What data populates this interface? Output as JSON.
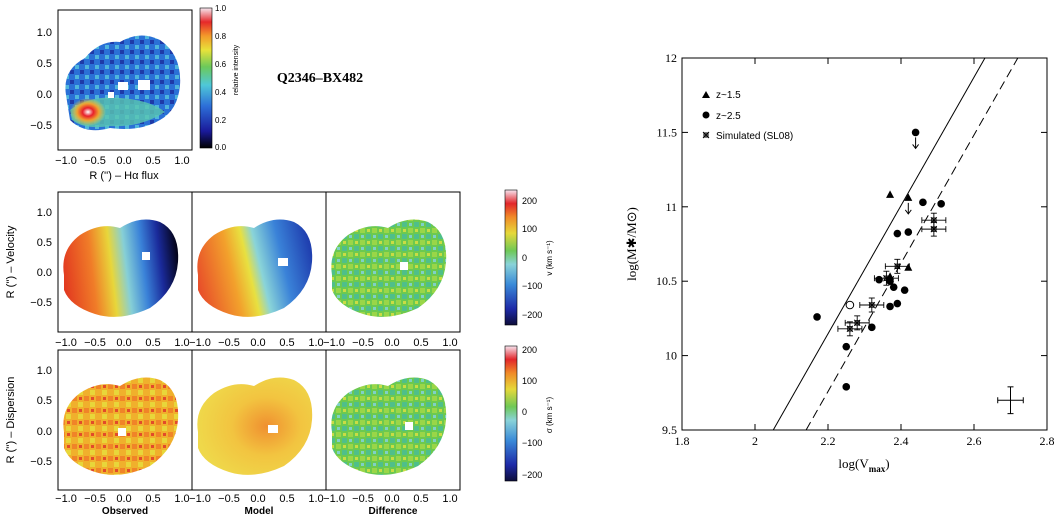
{
  "chart_data": [
    {
      "type": "heatmap",
      "panel": "halpha-flux-map",
      "object_label": "Q2346–BX482",
      "xlabel": "R ('') – Hα flux",
      "ylabel": "",
      "x_ticks": [
        "−1.0",
        "−0.5",
        "0.0",
        "0.5",
        "1.0"
      ],
      "y_ticks": [
        "1.0",
        "0.5",
        "0.0",
        "−0.5"
      ],
      "xlim": [
        -1.15,
        1.15
      ],
      "ylim": [
        -0.82,
        1.35
      ],
      "colorbar": {
        "label": "relative intensity",
        "ticks": [
          "1.0",
          "0.8",
          "0.6",
          "0.4",
          "0.2",
          "0.0"
        ],
        "range": [
          0.0,
          1.0
        ]
      }
    },
    {
      "type": "heatmap",
      "panel": "velocity-maps",
      "ylabel": "R ('') – Velocity",
      "columns": [
        "Observed",
        "Model",
        "Difference"
      ],
      "x_ticks": [
        "−1.0",
        "−0.5",
        "0.0",
        "0.5",
        "1.0"
      ],
      "y_ticks": [
        "1.0",
        "0.5",
        "0.0",
        "−0.5"
      ],
      "xlim": [
        -1.15,
        1.15
      ],
      "ylim": [
        -0.9,
        1.25
      ],
      "colorbar": {
        "label": "v (km s⁻¹)",
        "ticks": [
          "200",
          "100",
          "0",
          "−100",
          "−200"
        ],
        "range": [
          -240,
          240
        ]
      }
    },
    {
      "type": "heatmap",
      "panel": "dispersion-maps",
      "ylabel": "R ('') – Dispersion",
      "columns": [
        "Observed",
        "Model",
        "Difference"
      ],
      "x_ticks": [
        "−1.0",
        "−0.5",
        "0.0",
        "0.5",
        "1.0"
      ],
      "y_ticks": [
        "1.0",
        "0.5",
        "0.0",
        "−0.5"
      ],
      "xlim": [
        -1.15,
        1.15
      ],
      "ylim": [
        -0.9,
        1.25
      ],
      "colorbar": {
        "label": "σ (km s⁻¹)",
        "ticks": [
          "200",
          "100",
          "0",
          "−100",
          "−200"
        ],
        "range": [
          -220,
          220
        ]
      }
    },
    {
      "type": "scatter",
      "panel": "mass-velocity-relation",
      "xlabel": "log(V",
      "xlabel_sub": "max",
      "xlabel_end": ")",
      "ylabel": "log(M✱/M⊙)",
      "xlim": [
        1.8,
        2.8
      ],
      "ylim": [
        9.5,
        12
      ],
      "x_ticks": [
        "1.8",
        "2",
        "2.2",
        "2.4",
        "2.6",
        "2.8"
      ],
      "y_ticks": [
        "12",
        "11.5",
        "11",
        "10.5",
        "10",
        "9.5"
      ],
      "x_tick_values": [
        1.8,
        2.0,
        2.2,
        2.4,
        2.6,
        2.8
      ],
      "y_tick_values": [
        12,
        11.5,
        11,
        10.5,
        10,
        9.5
      ],
      "legend_position": "top-left",
      "series": [
        {
          "name": "z~1.5",
          "marker": "triangle",
          "points": [
            [
              2.37,
              11.08
            ],
            [
              2.42,
              11.06
            ],
            [
              2.42,
              10.59
            ],
            [
              2.37,
              10.53
            ]
          ],
          "upper_limits": [
            [
              2.42,
              11.06
            ]
          ]
        },
        {
          "name": "z~2.5",
          "marker": "circle",
          "points": [
            [
              2.44,
              11.5
            ],
            [
              2.17,
              10.26
            ],
            [
              2.25,
              10.06
            ],
            [
              2.25,
              9.79
            ],
            [
              2.32,
              10.19
            ],
            [
              2.34,
              10.51
            ],
            [
              2.37,
              10.5
            ],
            [
              2.37,
              10.33
            ],
            [
              2.39,
              10.35
            ],
            [
              2.38,
              10.46
            ],
            [
              2.41,
              10.44
            ],
            [
              2.39,
              10.82
            ],
            [
              2.42,
              10.83
            ],
            [
              2.46,
              11.03
            ],
            [
              2.51,
              11.02
            ]
          ],
          "upper_limits": [
            [
              2.44,
              11.5
            ]
          ]
        },
        {
          "name": "",
          "marker": "open-circle",
          "points": [
            [
              2.26,
              10.34
            ]
          ]
        },
        {
          "name": "Simulated (SL08)",
          "marker": "star-errorbar",
          "points": [
            [
              2.49,
              10.91
            ],
            [
              2.49,
              10.85
            ],
            [
              2.39,
              10.6
            ],
            [
              2.36,
              10.52
            ],
            [
              2.32,
              10.34
            ],
            [
              2.28,
              10.22
            ],
            [
              2.26,
              10.18
            ]
          ]
        }
      ],
      "fit_lines": [
        {
          "style": "solid",
          "from": [
            2.05,
            9.5
          ],
          "to": [
            2.63,
            12.0
          ]
        },
        {
          "style": "dashed",
          "from": [
            2.14,
            9.5
          ],
          "to": [
            2.72,
            12.0
          ]
        }
      ],
      "typical_error": {
        "x": 2.7,
        "y": 9.7,
        "xerr": 0.035,
        "yerr": 0.09
      }
    }
  ]
}
